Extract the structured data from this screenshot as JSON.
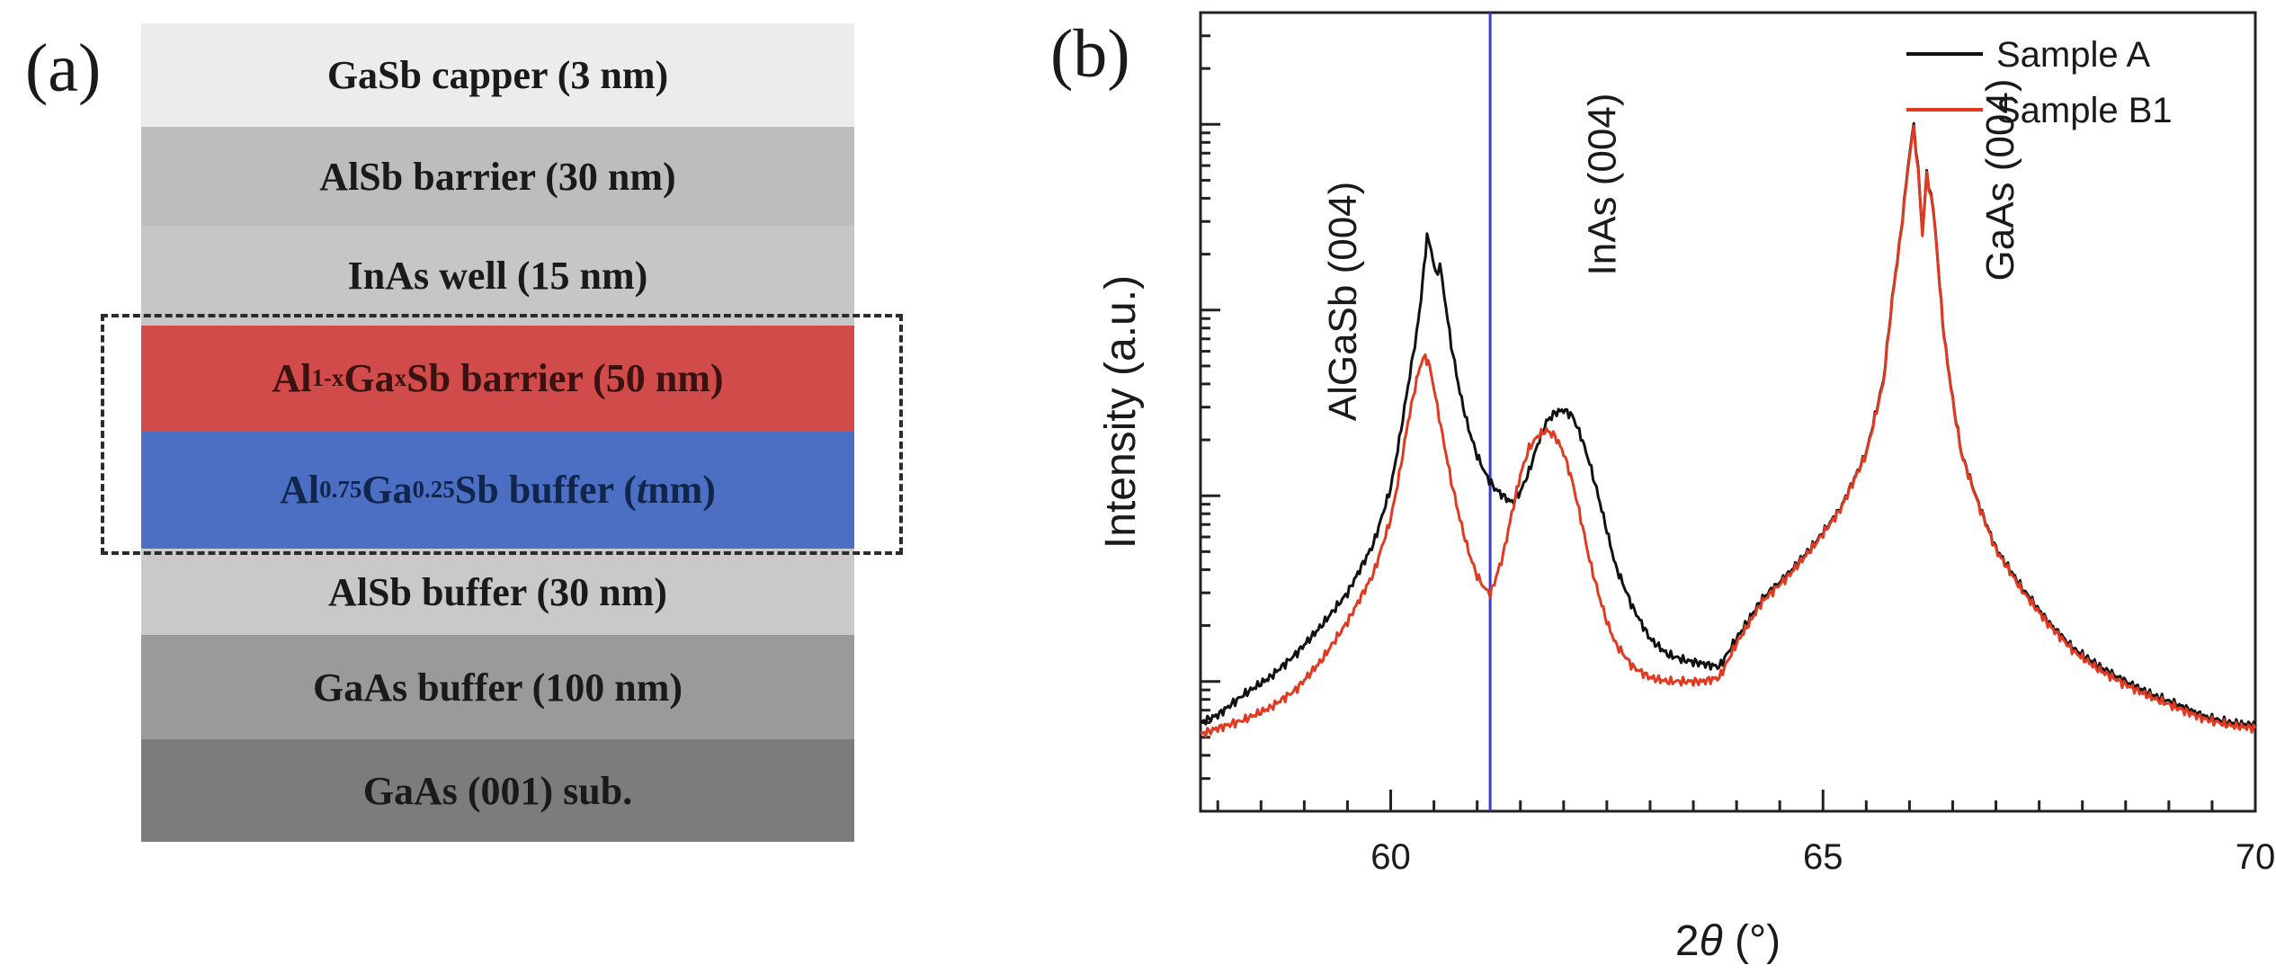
{
  "panel_a": {
    "label": "(a)",
    "layers": [
      {
        "name": "GaSb capper (3 nm)",
        "color": "#ececec"
      },
      {
        "name": "AlSb barrier (30 nm)",
        "color": "#bdbdbd"
      },
      {
        "name": "InAs well (15 nm)",
        "color": "#c6c6c6"
      },
      {
        "prefix": "Al",
        "sub1": "1-x",
        "mid": "Ga",
        "sub2": "x",
        "suffix": "Sb barrier (50 nm)",
        "color": "#d04b49"
      },
      {
        "prefix": "Al",
        "sub1": "0.75",
        "mid": "Ga",
        "sub2": "0.25",
        "suffix": "Sb buffer (",
        "ital": "t",
        "tail": " nm)",
        "color": "#4c6fc3"
      },
      {
        "name": "AlSb buffer (30 nm)",
        "color": "#c9c9c9"
      },
      {
        "name": "GaAs buffer (100 nm)",
        "color": "#9a9a9a"
      },
      {
        "name": "GaAs (001) sub.",
        "color": "#7c7c7c"
      }
    ]
  },
  "panel_b": {
    "label": "(b)"
  },
  "chart_data": {
    "type": "line",
    "xlabel_prefix": "2",
    "xlabel_symbol": "θ",
    "xlabel_suffix": " (°)",
    "ylabel": "Intensity (a.u.)",
    "xlim": [
      57.8,
      70
    ],
    "xticks": [
      60,
      65,
      70
    ],
    "y_scale": "log",
    "y_tick_labels": "none",
    "vertical_line": {
      "x": 61.15,
      "color": "#3a3ad0"
    },
    "annotations": [
      {
        "text": "AlGaSb (004)",
        "x": 59.6
      },
      {
        "text": "InAs (004)",
        "x": 62.6
      },
      {
        "text": "GaAs (004)",
        "x": 67.2
      }
    ],
    "legend_position": "top-right",
    "series": [
      {
        "name": "Sample A",
        "color": "#111111",
        "x": [
          57.8,
          58.0,
          58.3,
          58.6,
          58.9,
          59.2,
          59.5,
          59.8,
          60.0,
          60.1,
          60.2,
          60.3,
          60.35,
          60.42,
          60.47,
          60.52,
          60.57,
          60.62,
          60.7,
          60.8,
          60.9,
          61.0,
          61.1,
          61.2,
          61.3,
          61.4,
          61.5,
          61.6,
          61.7,
          61.8,
          61.9,
          62.0,
          62.1,
          62.2,
          62.3,
          62.4,
          62.5,
          62.6,
          62.8,
          63.0,
          63.2,
          63.4,
          63.6,
          63.8,
          64.0,
          64.3,
          64.6,
          64.9,
          65.2,
          65.5,
          65.7,
          65.8,
          65.9,
          66.0,
          66.05,
          66.1,
          66.15,
          66.2,
          66.25,
          66.3,
          66.35,
          66.4,
          66.5,
          66.6,
          66.8,
          67.0,
          67.3,
          67.6,
          67.9,
          68.2,
          68.5,
          68.8,
          69.1,
          69.4,
          69.7,
          70.0
        ],
        "y": [
          6,
          6.6,
          8.5,
          10.5,
          14,
          20,
          30,
          55,
          110,
          200,
          390,
          750,
          1150,
          2500,
          2100,
          1550,
          1750,
          1200,
          650,
          360,
          230,
          165,
          130,
          110,
          100,
          92,
          105,
          135,
          190,
          250,
          280,
          290,
          270,
          210,
          150,
          100,
          65,
          42,
          25,
          17,
          14,
          13,
          12.5,
          12,
          17,
          28,
          38,
          55,
          85,
          170,
          420,
          1150,
          2600,
          7000,
          9800,
          5800,
          2600,
          5400,
          4200,
          2700,
          1350,
          720,
          330,
          170,
          90,
          52,
          32,
          21,
          15,
          12,
          10,
          8.5,
          7.5,
          6.5,
          6,
          5.8
        ]
      },
      {
        "name": "Sample B1",
        "color": "#e03a22",
        "x": [
          57.8,
          58.0,
          58.3,
          58.6,
          58.9,
          59.2,
          59.5,
          59.8,
          60.0,
          60.1,
          60.2,
          60.3,
          60.35,
          60.4,
          60.45,
          60.5,
          60.6,
          60.7,
          60.8,
          60.9,
          61.0,
          61.1,
          61.15,
          61.2,
          61.3,
          61.4,
          61.5,
          61.6,
          61.7,
          61.8,
          61.9,
          62.0,
          62.1,
          62.2,
          62.3,
          62.4,
          62.5,
          62.6,
          62.8,
          63.0,
          63.2,
          63.4,
          63.6,
          63.8,
          64.0,
          64.3,
          64.6,
          64.9,
          65.2,
          65.5,
          65.7,
          65.8,
          65.9,
          66.0,
          66.05,
          66.1,
          66.15,
          66.2,
          66.25,
          66.3,
          66.35,
          66.4,
          66.5,
          66.6,
          66.8,
          67.0,
          67.3,
          67.6,
          67.9,
          68.2,
          68.5,
          68.8,
          69.1,
          69.4,
          69.7,
          70.0
        ],
        "y": [
          5.2,
          5.6,
          6.2,
          7.2,
          9,
          13,
          21,
          38,
          75,
          130,
          250,
          420,
          520,
          560,
          500,
          380,
          210,
          120,
          75,
          50,
          37,
          31,
          30,
          34,
          48,
          80,
          130,
          180,
          210,
          225,
          210,
          170,
          120,
          75,
          45,
          30,
          21,
          16,
          12,
          10.5,
          10,
          10,
          10,
          10.5,
          16,
          27,
          37,
          54,
          84,
          168,
          410,
          1130,
          2550,
          6800,
          9500,
          5600,
          2550,
          5300,
          4100,
          2650,
          1330,
          710,
          325,
          168,
          89,
          51,
          31,
          20.5,
          14.5,
          11.5,
          9.6,
          8.2,
          7.2,
          6.3,
          5.8,
          5.6
        ]
      }
    ]
  }
}
